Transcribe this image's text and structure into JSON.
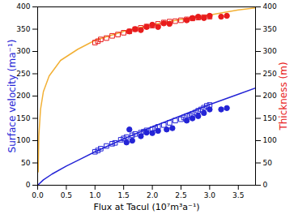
{
  "chart_data": {
    "type": "scatter",
    "x_label": "Flux at Tacul (10⁷m³a⁻¹)",
    "y_label": "Surface velocity (ma⁻¹)",
    "y2_label": "Thickness (m)",
    "xlim": [
      0,
      3.8
    ],
    "xticks": [
      {
        "value": 0,
        "label": "0.0"
      },
      {
        "value": 0.5,
        "label": "0.5"
      },
      {
        "value": 1,
        "label": "1.0"
      },
      {
        "value": 1.5,
        "label": "1.5"
      },
      {
        "value": 2,
        "label": "2.0"
      },
      {
        "value": 2.5,
        "label": "2.5"
      },
      {
        "value": 3,
        "label": "3.0"
      },
      {
        "value": 3.5,
        "label": "3.5"
      }
    ],
    "ylim": [
      0,
      400
    ],
    "yticks": [
      0,
      50,
      100,
      150,
      200,
      250,
      300,
      350,
      400
    ],
    "y2lim": [
      0,
      400
    ],
    "y2ticks": [
      0,
      50,
      100,
      150,
      200,
      250,
      300,
      350,
      400
    ],
    "grid": false,
    "series": [
      {
        "type": "line",
        "axis": "y",
        "color": "#2424d6",
        "line_style": "solid",
        "x": [
          0,
          0.1,
          0.25,
          0.5,
          0.75,
          1,
          1.5,
          2,
          2.5,
          3,
          3.5,
          3.8
        ],
        "values": [
          0,
          12,
          25,
          43,
          59,
          75,
          104,
          131,
          156,
          181,
          204,
          218
        ]
      },
      {
        "type": "line",
        "axis": "y2",
        "color": "#f2b035",
        "line_style": "solid",
        "x": [
          0.01,
          0.02,
          0.05,
          0.1,
          0.2,
          0.4,
          0.7,
          1,
          1.5,
          2,
          2.5,
          3,
          3.5,
          3.8
        ],
        "values": [
          30,
          110,
          170,
          210,
          245,
          280,
          305,
          325,
          345,
          360,
          372,
          382,
          393,
          398
        ]
      },
      {
        "type": "scatter",
        "axis": "y",
        "color": "#2424d6",
        "marker": "open_square",
        "x": [
          1.0,
          1.05,
          1.1,
          1.2,
          1.3,
          1.35,
          1.45,
          1.5,
          1.55,
          1.65,
          1.7,
          1.8,
          1.85,
          1.9,
          2.0,
          2.05,
          2.1,
          2.2,
          2.3,
          2.4,
          2.5,
          2.55,
          2.6,
          2.65,
          2.7,
          2.75,
          2.8,
          2.85,
          2.9,
          2.95,
          3.0
        ],
        "values": [
          75,
          78,
          82,
          88,
          93,
          95,
          102,
          105,
          108,
          112,
          115,
          118,
          120,
          123,
          126,
          128,
          131,
          135,
          140,
          145,
          148,
          152,
          155,
          157,
          160,
          163,
          167,
          170,
          174,
          178,
          180
        ]
      },
      {
        "type": "scatter",
        "axis": "y",
        "color": "#2424d6",
        "marker": "circle",
        "x": [
          1.55,
          1.6,
          1.65,
          1.8,
          1.9,
          2.0,
          2.1,
          2.25,
          2.35,
          2.6,
          2.7,
          2.8,
          2.9,
          3.0,
          3.2,
          3.3
        ],
        "values": [
          96,
          125,
          100,
          110,
          118,
          117,
          122,
          125,
          128,
          145,
          150,
          155,
          162,
          170,
          170,
          173
        ]
      },
      {
        "type": "scatter",
        "axis": "y2",
        "color": "#e81c1c",
        "marker": "open_square",
        "x": [
          1.0,
          1.05,
          1.1,
          1.2,
          1.3,
          1.4,
          1.5,
          1.6,
          1.7,
          1.8,
          1.9,
          2.0,
          2.1,
          2.2,
          2.3,
          2.4,
          2.5,
          2.6,
          2.7,
          2.8,
          2.9,
          3.0
        ],
        "values": [
          320,
          323,
          327,
          330,
          335,
          338,
          342,
          345,
          350,
          353,
          356,
          358,
          362,
          365,
          367,
          368,
          370,
          372,
          374,
          376,
          377,
          378
        ]
      },
      {
        "type": "scatter",
        "axis": "y2",
        "color": "#e81c1c",
        "marker": "circle",
        "x": [
          1.6,
          1.7,
          1.8,
          1.9,
          2.0,
          2.1,
          2.2,
          2.3,
          2.6,
          2.7,
          2.8,
          2.9,
          3.0,
          3.2,
          3.3
        ],
        "values": [
          345,
          350,
          348,
          355,
          360,
          355,
          363,
          362,
          370,
          375,
          378,
          375,
          380,
          378,
          380
        ]
      }
    ]
  }
}
